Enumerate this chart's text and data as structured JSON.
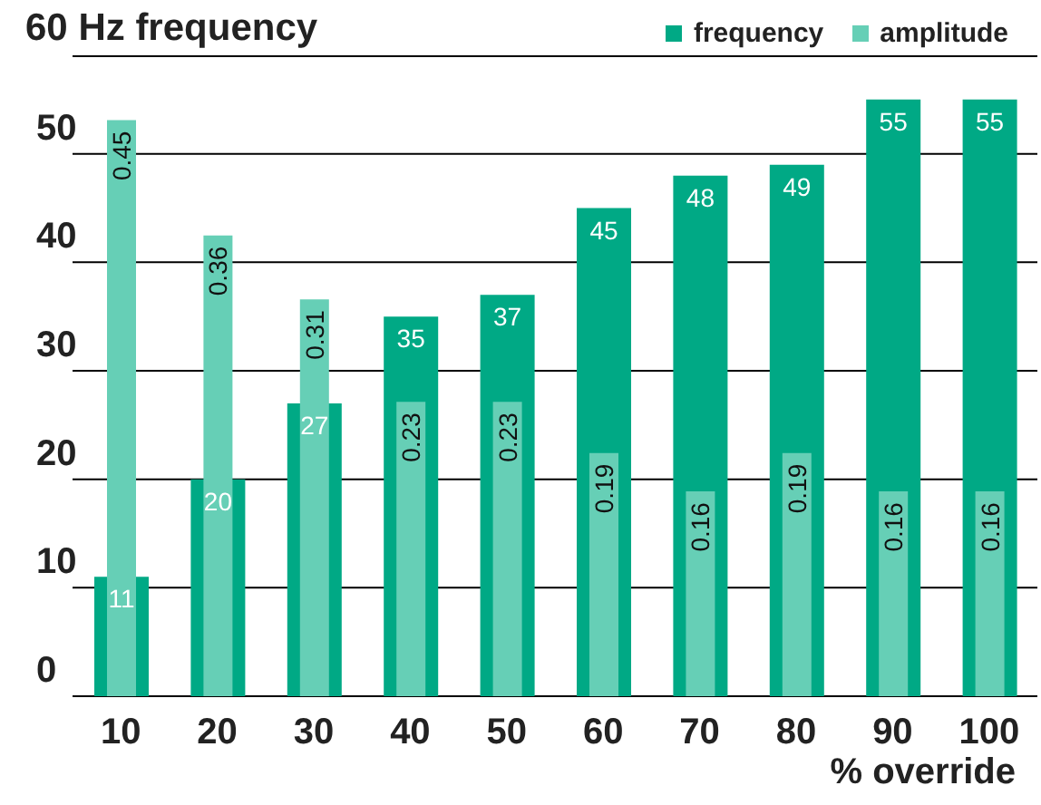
{
  "chart_data": {
    "type": "bar",
    "title": "60 Hz frequency",
    "xlabel": "% override",
    "categories": [
      "10",
      "20",
      "30",
      "40",
      "50",
      "60",
      "70",
      "80",
      "90",
      "100"
    ],
    "series": [
      {
        "name": "frequency",
        "color": "#00a985",
        "values": [
          11,
          20,
          27,
          35,
          37,
          45,
          48,
          49,
          55,
          55
        ]
      },
      {
        "name": "amplitude",
        "color": "#66cfb6",
        "axis": "y2",
        "values": [
          0.45,
          0.36,
          0.31,
          0.23,
          0.23,
          0.19,
          0.16,
          0.19,
          0.16,
          0.16
        ]
      }
    ],
    "ylim": [
      0,
      59
    ],
    "yticks": [
      0,
      10,
      20,
      30,
      40,
      50
    ],
    "y2lim": [
      0,
      0.5
    ],
    "grid": "y",
    "legend": "top right",
    "data_labels": true
  }
}
